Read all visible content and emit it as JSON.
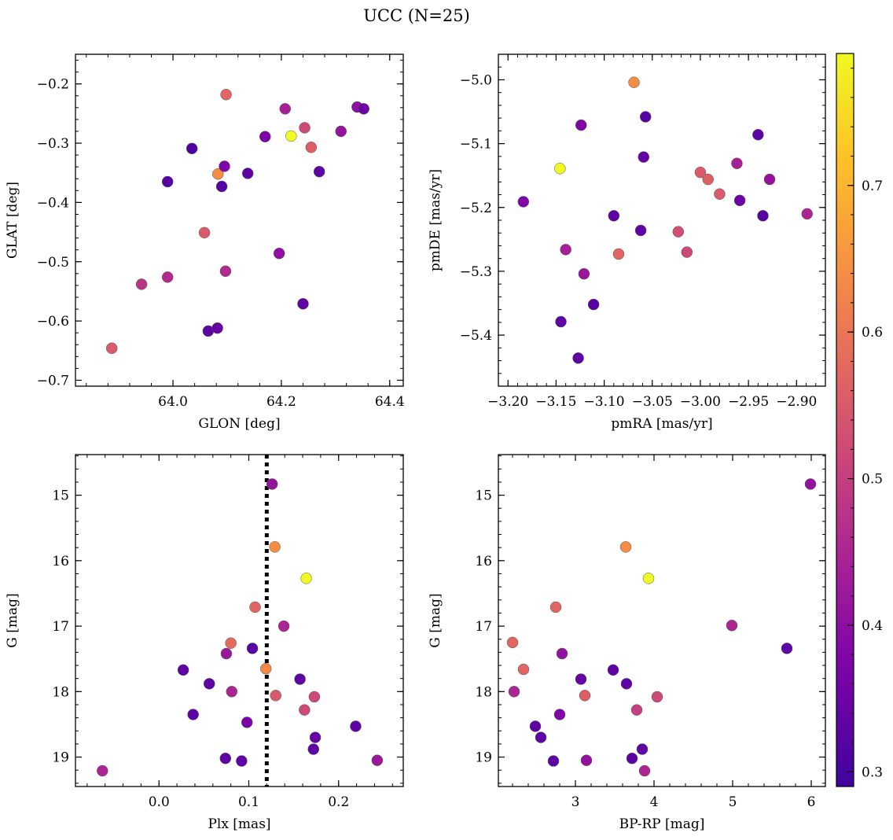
{
  "figure": {
    "suptitle": "UCC (N=25)"
  },
  "colorbar": {
    "cmap": "plasma",
    "range": [
      0.29,
      0.79
    ],
    "ticks": [
      0.3,
      0.4,
      0.5,
      0.6,
      0.7
    ]
  },
  "chart_data": [
    {
      "type": "scatter",
      "panel": "top-left",
      "xlabel": "GLON [deg]",
      "ylabel": "GLAT [deg]",
      "xlim": [
        63.82,
        64.425
      ],
      "ylim": [
        -0.71,
        -0.15
      ],
      "xticks": [
        64.0,
        64.2,
        64.4
      ],
      "xtick_labels": [
        "64.0",
        "64.2",
        "64.4"
      ],
      "yticks": [
        -0.2,
        -0.3,
        -0.4,
        -0.5,
        -0.6,
        -0.7
      ],
      "ytick_labels": [
        "−0.2",
        "−0.3",
        "−0.4",
        "−0.5",
        "−0.6",
        "−0.7"
      ],
      "points": [
        {
          "x": 63.887,
          "y": -0.646,
          "c": 0.55
        },
        {
          "x": 63.942,
          "y": -0.538,
          "c": 0.48
        },
        {
          "x": 63.99,
          "y": -0.526,
          "c": 0.46
        },
        {
          "x": 63.99,
          "y": -0.365,
          "c": 0.32
        },
        {
          "x": 64.035,
          "y": -0.309,
          "c": 0.31
        },
        {
          "x": 64.058,
          "y": -0.451,
          "c": 0.55
        },
        {
          "x": 64.065,
          "y": -0.617,
          "c": 0.33
        },
        {
          "x": 64.082,
          "y": -0.612,
          "c": 0.34
        },
        {
          "x": 64.083,
          "y": -0.352,
          "c": 0.64
        },
        {
          "x": 64.09,
          "y": -0.373,
          "c": 0.32
        },
        {
          "x": 64.095,
          "y": -0.339,
          "c": 0.38
        },
        {
          "x": 64.097,
          "y": -0.516,
          "c": 0.46
        },
        {
          "x": 64.098,
          "y": -0.218,
          "c": 0.57
        },
        {
          "x": 64.138,
          "y": -0.351,
          "c": 0.33
        },
        {
          "x": 64.17,
          "y": -0.289,
          "c": 0.37
        },
        {
          "x": 64.196,
          "y": -0.486,
          "c": 0.4
        },
        {
          "x": 64.207,
          "y": -0.242,
          "c": 0.44
        },
        {
          "x": 64.218,
          "y": -0.288,
          "c": 0.79
        },
        {
          "x": 64.24,
          "y": -0.571,
          "c": 0.33
        },
        {
          "x": 64.243,
          "y": -0.274,
          "c": 0.52
        },
        {
          "x": 64.255,
          "y": -0.307,
          "c": 0.56
        },
        {
          "x": 64.27,
          "y": -0.348,
          "c": 0.33
        },
        {
          "x": 64.31,
          "y": -0.28,
          "c": 0.41
        },
        {
          "x": 64.34,
          "y": -0.239,
          "c": 0.4
        },
        {
          "x": 64.352,
          "y": -0.242,
          "c": 0.35
        }
      ]
    },
    {
      "type": "scatter",
      "panel": "top-right",
      "xlabel": "pmRA [mas/yr]",
      "ylabel": "pmDE [mas/yr]",
      "xlim": [
        -3.21,
        -2.87
      ],
      "ylim": [
        -5.48,
        -4.96
      ],
      "xticks": [
        -3.2,
        -3.15,
        -3.1,
        -3.05,
        -3.0,
        -2.95,
        -2.9
      ],
      "xtick_labels": [
        "−3.20",
        "−3.15",
        "−3.10",
        "−3.05",
        "−3.00",
        "−2.95",
        "−2.90"
      ],
      "yticks": [
        -5.0,
        -5.1,
        -5.2,
        -5.3,
        -5.4
      ],
      "ytick_labels": [
        "−5.0",
        "−5.1",
        "−5.2",
        "−5.3",
        "−5.4"
      ],
      "points": [
        {
          "x": -3.184,
          "y": -5.191,
          "c": 0.38
        },
        {
          "x": -3.146,
          "y": -5.139,
          "c": 0.79
        },
        {
          "x": -3.145,
          "y": -5.379,
          "c": 0.33
        },
        {
          "x": -3.14,
          "y": -5.266,
          "c": 0.44
        },
        {
          "x": -3.127,
          "y": -5.436,
          "c": 0.33
        },
        {
          "x": -3.124,
          "y": -5.071,
          "c": 0.38
        },
        {
          "x": -3.121,
          "y": -5.304,
          "c": 0.42
        },
        {
          "x": -3.111,
          "y": -5.352,
          "c": 0.32
        },
        {
          "x": -3.09,
          "y": -5.213,
          "c": 0.33
        },
        {
          "x": -3.085,
          "y": -5.273,
          "c": 0.57
        },
        {
          "x": -3.069,
          "y": -5.004,
          "c": 0.64
        },
        {
          "x": -3.062,
          "y": -5.236,
          "c": 0.33
        },
        {
          "x": -3.059,
          "y": -5.121,
          "c": 0.34
        },
        {
          "x": -3.057,
          "y": -5.058,
          "c": 0.32
        },
        {
          "x": -3.023,
          "y": -5.238,
          "c": 0.53
        },
        {
          "x": -3.014,
          "y": -5.27,
          "c": 0.52
        },
        {
          "x": -3.0,
          "y": -5.145,
          "c": 0.55
        },
        {
          "x": -2.992,
          "y": -5.156,
          "c": 0.56
        },
        {
          "x": -2.98,
          "y": -5.179,
          "c": 0.55
        },
        {
          "x": -2.962,
          "y": -5.131,
          "c": 0.44
        },
        {
          "x": -2.959,
          "y": -5.189,
          "c": 0.35
        },
        {
          "x": -2.94,
          "y": -5.086,
          "c": 0.33
        },
        {
          "x": -2.935,
          "y": -5.213,
          "c": 0.32
        },
        {
          "x": -2.928,
          "y": -5.156,
          "c": 0.41
        },
        {
          "x": -2.889,
          "y": -5.21,
          "c": 0.45
        }
      ]
    },
    {
      "type": "scatter",
      "panel": "bottom-left",
      "xlabel": "Plx [mas]",
      "ylabel": "G [mag]",
      "xlim": [
        -0.093,
        0.272
      ],
      "ylim": [
        19.45,
        14.38
      ],
      "y_inverted": true,
      "xticks": [
        0.0,
        0.1,
        0.2
      ],
      "xtick_labels": [
        "0.0",
        "0.1",
        "0.2"
      ],
      "yticks": [
        15,
        16,
        17,
        18,
        19
      ],
      "ytick_labels": [
        "15",
        "16",
        "17",
        "18",
        "19"
      ],
      "vline": {
        "x": 0.12,
        "style": "dotted",
        "color": "#000000"
      },
      "points": [
        {
          "x": -0.063,
          "y": 19.21,
          "c": 0.45
        },
        {
          "x": 0.027,
          "y": 17.67,
          "c": 0.33
        },
        {
          "x": 0.038,
          "y": 18.35,
          "c": 0.33
        },
        {
          "x": 0.056,
          "y": 17.88,
          "c": 0.33
        },
        {
          "x": 0.074,
          "y": 19.02,
          "c": 0.33
        },
        {
          "x": 0.075,
          "y": 17.42,
          "c": 0.42
        },
        {
          "x": 0.08,
          "y": 17.26,
          "c": 0.58
        },
        {
          "x": 0.081,
          "y": 18.0,
          "c": 0.45
        },
        {
          "x": 0.092,
          "y": 19.06,
          "c": 0.33
        },
        {
          "x": 0.098,
          "y": 18.47,
          "c": 0.37
        },
        {
          "x": 0.104,
          "y": 17.34,
          "c": 0.32
        },
        {
          "x": 0.107,
          "y": 16.71,
          "c": 0.57
        },
        {
          "x": 0.119,
          "y": 17.65,
          "c": 0.63
        },
        {
          "x": 0.126,
          "y": 14.83,
          "c": 0.41
        },
        {
          "x": 0.129,
          "y": 15.79,
          "c": 0.64
        },
        {
          "x": 0.13,
          "y": 18.06,
          "c": 0.55
        },
        {
          "x": 0.139,
          "y": 17.0,
          "c": 0.45
        },
        {
          "x": 0.157,
          "y": 17.81,
          "c": 0.33
        },
        {
          "x": 0.162,
          "y": 18.28,
          "c": 0.52
        },
        {
          "x": 0.164,
          "y": 16.27,
          "c": 0.79
        },
        {
          "x": 0.172,
          "y": 18.88,
          "c": 0.33
        },
        {
          "x": 0.173,
          "y": 18.08,
          "c": 0.52
        },
        {
          "x": 0.174,
          "y": 18.7,
          "c": 0.34
        },
        {
          "x": 0.219,
          "y": 18.53,
          "c": 0.33
        },
        {
          "x": 0.243,
          "y": 19.05,
          "c": 0.42
        }
      ]
    },
    {
      "type": "scatter",
      "panel": "bottom-right",
      "xlabel": "BP-RP [mag]",
      "ylabel": "G [mag]",
      "xlim": [
        2.02,
        6.18
      ],
      "ylim": [
        19.45,
        14.38
      ],
      "y_inverted": true,
      "xticks": [
        3,
        4,
        5,
        6
      ],
      "xtick_labels": [
        "3",
        "4",
        "5",
        "6"
      ],
      "yticks": [
        15,
        16,
        17,
        18,
        19
      ],
      "ytick_labels": [
        "15",
        "16",
        "17",
        "18",
        "19"
      ],
      "points": [
        {
          "x": 2.2,
          "y": 17.25,
          "c": 0.57
        },
        {
          "x": 2.22,
          "y": 18.0,
          "c": 0.45
        },
        {
          "x": 2.34,
          "y": 17.66,
          "c": 0.57
        },
        {
          "x": 2.49,
          "y": 18.53,
          "c": 0.33
        },
        {
          "x": 2.56,
          "y": 18.7,
          "c": 0.33
        },
        {
          "x": 2.72,
          "y": 19.06,
          "c": 0.33
        },
        {
          "x": 2.75,
          "y": 16.71,
          "c": 0.57
        },
        {
          "x": 2.8,
          "y": 18.35,
          "c": 0.38
        },
        {
          "x": 2.83,
          "y": 17.42,
          "c": 0.41
        },
        {
          "x": 3.07,
          "y": 17.81,
          "c": 0.34
        },
        {
          "x": 3.12,
          "y": 18.06,
          "c": 0.56
        },
        {
          "x": 3.14,
          "y": 19.05,
          "c": 0.41
        },
        {
          "x": 3.48,
          "y": 17.67,
          "c": 0.33
        },
        {
          "x": 3.64,
          "y": 15.79,
          "c": 0.64
        },
        {
          "x": 3.65,
          "y": 17.88,
          "c": 0.33
        },
        {
          "x": 3.72,
          "y": 19.02,
          "c": 0.33
        },
        {
          "x": 3.78,
          "y": 18.28,
          "c": 0.5
        },
        {
          "x": 3.85,
          "y": 18.88,
          "c": 0.33
        },
        {
          "x": 3.88,
          "y": 19.21,
          "c": 0.45
        },
        {
          "x": 3.93,
          "y": 16.27,
          "c": 0.79
        },
        {
          "x": 4.04,
          "y": 18.08,
          "c": 0.52
        },
        {
          "x": 4.99,
          "y": 16.99,
          "c": 0.45
        },
        {
          "x": 5.69,
          "y": 17.34,
          "c": 0.33
        },
        {
          "x": 5.99,
          "y": 14.83,
          "c": 0.41
        }
      ]
    }
  ]
}
